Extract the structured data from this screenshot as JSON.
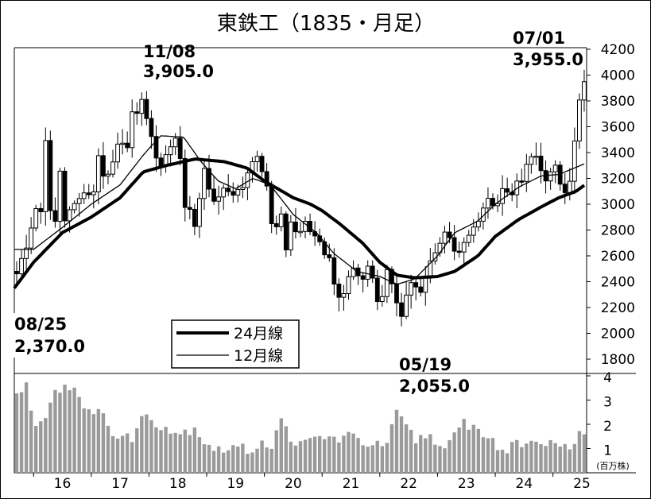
{
  "chart_data": {
    "type": "candlestick",
    "title": "東鉄工（1835・月足）",
    "price_axis": {
      "ticks": [
        1800,
        2000,
        2200,
        2400,
        2600,
        2800,
        3000,
        3200,
        3400,
        3600,
        3800,
        4000,
        4200
      ],
      "ylim": [
        1800,
        4200
      ]
    },
    "volume_axis": {
      "ticks": [
        1,
        2,
        3,
        4
      ],
      "ylim": [
        0,
        4
      ],
      "unit": "(百万株)"
    },
    "x_axis": {
      "ticks": [
        "16",
        "17",
        "18",
        "19",
        "20",
        "21",
        "22",
        "23",
        "24",
        "25"
      ],
      "start": 2015.6667,
      "end": 2025.5833
    },
    "legend": [
      {
        "label": "24月線",
        "weight": "thick"
      },
      {
        "label": "12月線",
        "weight": "thin"
      }
    ],
    "annotations": [
      {
        "date": "08/25",
        "value": "2,370.0"
      },
      {
        "date": "11/08",
        "value": "3,905.0"
      },
      {
        "date": "05/19",
        "value": "2,055.0"
      },
      {
        "date": "07/01",
        "value": "3,955.0"
      }
    ],
    "anchors": [
      [
        2015.67,
        2480
      ],
      [
        2015.83,
        2650
      ],
      [
        2016.0,
        2980
      ],
      [
        2016.08,
        2900
      ],
      [
        2016.17,
        3500
      ],
      [
        2016.25,
        2950
      ],
      [
        2016.33,
        2850
      ],
      [
        2016.42,
        3270
      ],
      [
        2016.5,
        2900
      ],
      [
        2016.58,
        2950
      ],
      [
        2016.67,
        3000
      ],
      [
        2016.75,
        3050
      ],
      [
        2017.0,
        3100
      ],
      [
        2017.08,
        3400
      ],
      [
        2017.17,
        3180
      ],
      [
        2017.25,
        3220
      ],
      [
        2017.33,
        3300
      ],
      [
        2017.42,
        3450
      ],
      [
        2017.5,
        3500
      ],
      [
        2017.58,
        3420
      ],
      [
        2017.67,
        3700
      ],
      [
        2017.75,
        3720
      ],
      [
        2017.83,
        3800
      ],
      [
        2017.92,
        3680
      ],
      [
        2018.0,
        3500
      ],
      [
        2018.08,
        3380
      ],
      [
        2018.17,
        3300
      ],
      [
        2018.25,
        3380
      ],
      [
        2018.33,
        3450
      ],
      [
        2018.42,
        3520
      ],
      [
        2018.5,
        3350
      ],
      [
        2018.58,
        3000
      ],
      [
        2018.67,
        2950
      ],
      [
        2018.75,
        2800
      ],
      [
        2018.83,
        3050
      ],
      [
        2018.92,
        3300
      ],
      [
        2019.0,
        3100
      ],
      [
        2019.08,
        3000
      ],
      [
        2019.17,
        3050
      ],
      [
        2019.25,
        3150
      ],
      [
        2019.33,
        3100
      ],
      [
        2019.42,
        3050
      ],
      [
        2019.5,
        3100
      ],
      [
        2019.58,
        3150
      ],
      [
        2019.67,
        3250
      ],
      [
        2019.75,
        3300
      ],
      [
        2019.83,
        3350
      ],
      [
        2019.92,
        3250
      ],
      [
        2020.0,
        3150
      ],
      [
        2020.08,
        2850
      ],
      [
        2020.17,
        2850
      ],
      [
        2020.25,
        2900
      ],
      [
        2020.33,
        2650
      ],
      [
        2020.42,
        2880
      ],
      [
        2020.5,
        2780
      ],
      [
        2020.58,
        2780
      ],
      [
        2020.67,
        2870
      ],
      [
        2020.75,
        2800
      ],
      [
        2020.83,
        2730
      ],
      [
        2020.92,
        2680
      ],
      [
        2021.0,
        2630
      ],
      [
        2021.08,
        2580
      ],
      [
        2021.17,
        2400
      ],
      [
        2021.25,
        2250
      ],
      [
        2021.33,
        2300
      ],
      [
        2021.42,
        2450
      ],
      [
        2021.5,
        2500
      ],
      [
        2021.58,
        2450
      ],
      [
        2021.67,
        2420
      ],
      [
        2021.75,
        2550
      ],
      [
        2021.83,
        2420
      ],
      [
        2021.92,
        2250
      ],
      [
        2022.0,
        2300
      ],
      [
        2022.08,
        2480
      ],
      [
        2022.17,
        2350
      ],
      [
        2022.25,
        2250
      ],
      [
        2022.33,
        2150
      ],
      [
        2022.42,
        2300
      ],
      [
        2022.5,
        2400
      ],
      [
        2022.58,
        2350
      ],
      [
        2022.67,
        2300
      ],
      [
        2022.75,
        2420
      ],
      [
        2022.83,
        2550
      ],
      [
        2022.92,
        2650
      ],
      [
        2023.0,
        2700
      ],
      [
        2023.08,
        2780
      ],
      [
        2023.17,
        2760
      ],
      [
        2023.25,
        2650
      ],
      [
        2023.33,
        2600
      ],
      [
        2023.42,
        2700
      ],
      [
        2023.5,
        2750
      ],
      [
        2023.58,
        2800
      ],
      [
        2023.67,
        2880
      ],
      [
        2023.75,
        2950
      ],
      [
        2023.83,
        3050
      ],
      [
        2023.92,
        3000
      ],
      [
        2024.0,
        3000
      ],
      [
        2024.08,
        3150
      ],
      [
        2024.17,
        3100
      ],
      [
        2024.25,
        3050
      ],
      [
        2024.33,
        3200
      ],
      [
        2024.42,
        3150
      ],
      [
        2024.5,
        3300
      ],
      [
        2024.58,
        3350
      ],
      [
        2024.67,
        3400
      ],
      [
        2024.75,
        3250
      ],
      [
        2024.83,
        3150
      ],
      [
        2024.92,
        3250
      ],
      [
        2025.0,
        3300
      ],
      [
        2025.08,
        3150
      ],
      [
        2025.17,
        3080
      ],
      [
        2025.25,
        3150
      ],
      [
        2025.33,
        3450
      ],
      [
        2025.42,
        3850
      ],
      [
        2025.5,
        3930
      ]
    ],
    "ma24": [
      [
        2015.6667,
        2350
      ],
      [
        2016.0,
        2550
      ],
      [
        2016.5,
        2780
      ],
      [
        2017.0,
        2900
      ],
      [
        2017.5,
        3050
      ],
      [
        2017.9,
        3250
      ],
      [
        2018.3,
        3300
      ],
      [
        2018.8,
        3350
      ],
      [
        2019.3,
        3330
      ],
      [
        2019.7,
        3280
      ],
      [
        2020.0,
        3180
      ],
      [
        2020.5,
        3050
      ],
      [
        2020.8,
        3000
      ],
      [
        2021.0,
        2950
      ],
      [
        2021.3,
        2850
      ],
      [
        2021.7,
        2700
      ],
      [
        2022.0,
        2550
      ],
      [
        2022.3,
        2450
      ],
      [
        2022.6,
        2430
      ],
      [
        2023.0,
        2440
      ],
      [
        2023.3,
        2480
      ],
      [
        2023.7,
        2600
      ],
      [
        2024.0,
        2750
      ],
      [
        2024.4,
        2880
      ],
      [
        2024.8,
        2980
      ],
      [
        2025.1,
        3050
      ],
      [
        2025.4,
        3100
      ],
      [
        2025.5833,
        3160
      ]
    ],
    "ma12": [
      [
        2015.6667,
        2650
      ],
      [
        2016.0,
        2650
      ],
      [
        2016.5,
        2820
      ],
      [
        2017.0,
        3000
      ],
      [
        2017.5,
        3150
      ],
      [
        2017.9,
        3380
      ],
      [
        2018.2,
        3530
      ],
      [
        2018.6,
        3520
      ],
      [
        2018.9,
        3330
      ],
      [
        2019.2,
        3180
      ],
      [
        2019.5,
        3120
      ],
      [
        2019.8,
        3200
      ],
      [
        2020.1,
        3150
      ],
      [
        2020.5,
        2920
      ],
      [
        2020.9,
        2780
      ],
      [
        2021.2,
        2620
      ],
      [
        2021.6,
        2480
      ],
      [
        2022.0,
        2440
      ],
      [
        2022.3,
        2380
      ],
      [
        2022.6,
        2420
      ],
      [
        2023.0,
        2600
      ],
      [
        2023.3,
        2780
      ],
      [
        2023.7,
        2870
      ],
      [
        2024.0,
        3000
      ],
      [
        2024.4,
        3130
      ],
      [
        2024.8,
        3220
      ],
      [
        2025.1,
        3230
      ],
      [
        2025.5833,
        3320
      ]
    ],
    "volume_profile": [
      [
        2015.67,
        3.2
      ],
      [
        2015.83,
        3.6
      ],
      [
        2016.0,
        1.9
      ],
      [
        2016.17,
        2.5
      ],
      [
        2016.33,
        3.4
      ],
      [
        2016.5,
        3.6
      ],
      [
        2016.67,
        3.5
      ],
      [
        2016.83,
        2.9
      ],
      [
        2017.0,
        2.2
      ],
      [
        2017.17,
        2.7
      ],
      [
        2017.33,
        1.5
      ],
      [
        2017.5,
        1.4
      ],
      [
        2017.67,
        1.5
      ],
      [
        2017.83,
        2.2
      ],
      [
        2017.92,
        2.4
      ],
      [
        2018.08,
        2.1
      ],
      [
        2018.25,
        1.9
      ],
      [
        2018.5,
        1.6
      ],
      [
        2018.75,
        1.9
      ],
      [
        2018.92,
        1.3
      ],
      [
        2019.17,
        0.9
      ],
      [
        2019.42,
        1.1
      ],
      [
        2019.67,
        0.9
      ],
      [
        2019.92,
        1.3
      ],
      [
        2020.08,
        1.1
      ],
      [
        2020.25,
        2.1
      ],
      [
        2020.42,
        1.5
      ],
      [
        2020.58,
        1.1
      ],
      [
        2020.75,
        1.3
      ],
      [
        2020.92,
        1.5
      ],
      [
        2021.17,
        1.4
      ],
      [
        2021.42,
        1.5
      ],
      [
        2021.67,
        1.3
      ],
      [
        2021.92,
        1.1
      ],
      [
        2022.08,
        1.2
      ],
      [
        2022.25,
        2.4
      ],
      [
        2022.42,
        1.9
      ],
      [
        2022.58,
        1.3
      ],
      [
        2022.75,
        1.6
      ],
      [
        2022.92,
        1.4
      ],
      [
        2023.08,
        0.8
      ],
      [
        2023.25,
        1.5
      ],
      [
        2023.42,
        2.1
      ],
      [
        2023.58,
        1.9
      ],
      [
        2023.75,
        1.6
      ],
      [
        2023.92,
        1.4
      ],
      [
        2024.08,
        0.7
      ],
      [
        2024.25,
        1.3
      ],
      [
        2024.42,
        1.1
      ],
      [
        2024.58,
        1.5
      ],
      [
        2024.75,
        1.2
      ],
      [
        2024.92,
        1.5
      ],
      [
        2025.08,
        0.9
      ],
      [
        2025.25,
        1.2
      ],
      [
        2025.42,
        1.6
      ],
      [
        2025.5,
        1.6
      ]
    ]
  }
}
